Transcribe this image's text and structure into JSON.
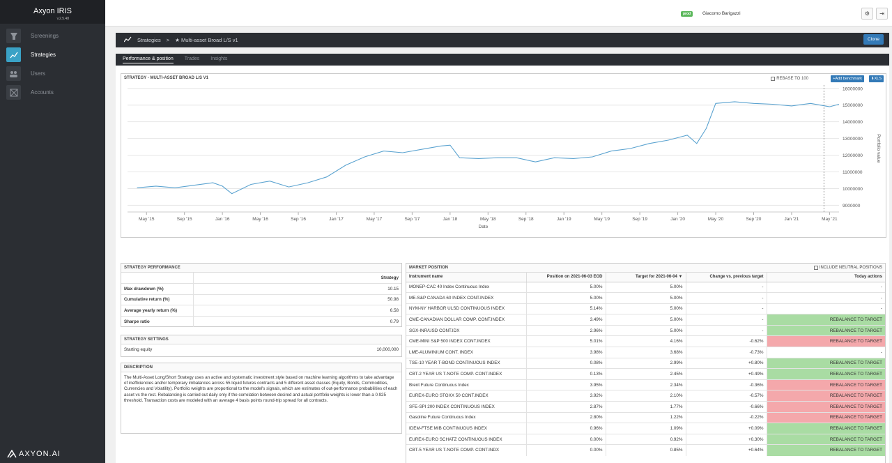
{
  "app": {
    "name": "Axyon IRIS",
    "version": "v.2.5.48",
    "footer_logo": "AXYON.AI"
  },
  "sidebar": {
    "items": [
      {
        "label": "Screenings",
        "icon": "screenings-icon",
        "active": false
      },
      {
        "label": "Strategies",
        "icon": "chart-line-icon",
        "active": true
      },
      {
        "label": "Users",
        "icon": "users-icon",
        "active": false
      },
      {
        "label": "Accounts",
        "icon": "accounts-icon",
        "active": false
      }
    ]
  },
  "topbar": {
    "env_badge": "prod",
    "user": "Giacomo Barigazzi"
  },
  "breadcrumb": {
    "section": "Strategies",
    "separator": ">",
    "current": "★ Multi-asset Broad L/S v1",
    "clone": "Clone"
  },
  "tabs": [
    {
      "label": "Performance & position",
      "active": true
    },
    {
      "label": "Trades",
      "active": false
    },
    {
      "label": "Insights",
      "active": false
    }
  ],
  "chart": {
    "panel_title": "STRATEGY - MULTI-ASSET BROAD L/S V1",
    "rebase_label": "REBASE TO 100",
    "add_benchmark": "+Add benchmark",
    "xls": "⬇XLS"
  },
  "chart_data": {
    "type": "line",
    "xlabel": "Date",
    "ylabel": "Portfolio value",
    "x_ticks": [
      "May '15",
      "Sep '15",
      "Jan '16",
      "May '16",
      "Sep '16",
      "Jan '17",
      "May '17",
      "Sep '17",
      "Jan '18",
      "May '18",
      "Sep '18",
      "Jan '19",
      "May '19",
      "Sep '19",
      "Jan '20",
      "May '20",
      "Sep '20",
      "Jan '21",
      "May '21"
    ],
    "y_ticks": [
      9000000,
      10000000,
      11000000,
      12000000,
      13000000,
      14000000,
      15000000,
      16000000
    ],
    "ylim": [
      8600000,
      16200000
    ],
    "grid": true,
    "series": [
      {
        "color": "#5ba3d0",
        "x": [
          "2015-04",
          "2015-06",
          "2015-08",
          "2015-10",
          "2015-12",
          "2016-01",
          "2016-02",
          "2016-04",
          "2016-06",
          "2016-08",
          "2016-10",
          "2016-12",
          "2017-02",
          "2017-04",
          "2017-06",
          "2017-08",
          "2017-10",
          "2017-12",
          "2018-01",
          "2018-02",
          "2018-04",
          "2018-06",
          "2018-08",
          "2018-10",
          "2018-12",
          "2019-02",
          "2019-04",
          "2019-06",
          "2019-08",
          "2019-10",
          "2019-12",
          "2020-02",
          "2020-03",
          "2020-04",
          "2020-05",
          "2020-07",
          "2020-09",
          "2020-11",
          "2021-01",
          "2021-03",
          "2021-05",
          "2021-06"
        ],
        "y": [
          10050000,
          10150000,
          10050000,
          10200000,
          10350000,
          10150000,
          9700000,
          10250000,
          10450000,
          10100000,
          10350000,
          10700000,
          11400000,
          11900000,
          12250000,
          12150000,
          12350000,
          12550000,
          12600000,
          11850000,
          11800000,
          11850000,
          11850000,
          11600000,
          11850000,
          11800000,
          11900000,
          12250000,
          12400000,
          12700000,
          12900000,
          13200000,
          12700000,
          13600000,
          15100000,
          15200000,
          15100000,
          15050000,
          14950000,
          15100000,
          14900000,
          15050000
        ]
      }
    ],
    "marker_line_at": "May '21"
  },
  "performance": {
    "title": "STRATEGY PERFORMANCE",
    "column": "Strategy",
    "rows": [
      {
        "k": "Max drawdown (%)",
        "v": "10.15"
      },
      {
        "k": "Cumulative return (%)",
        "v": "50.98"
      },
      {
        "k": "Average yearly return (%)",
        "v": "6.58"
      },
      {
        "k": "Sharpe ratio",
        "v": "0.79"
      }
    ]
  },
  "settings": {
    "title": "STRATEGY SETTINGS",
    "rows": [
      {
        "k": "Starting equity",
        "v": "10,000,000"
      }
    ]
  },
  "description": {
    "title": "DESCRIPTION",
    "text": "The Multi-Asset Long/Short Strategy uses an active and systematic investment style based on machine learning algorithms to take advantage of inefficiencies and/or temporary imbalances across 55 liquid futures contracts and 5 different asset classes (Equity, Bonds, Commodities, Currencies and Volatility). Portfolio weights are proportional to the model's signals, which are estimates of out-performance probabilities of each asset vs the rest. Rebalancing is carried out daily only if the correlation between desired and actual portfolio weights is lower than a 0.925 threshold. Transaction costs are modeled with an average 4 basis points round-trip spread for all contracts."
  },
  "market": {
    "title": "MARKET POSITION",
    "neutral_label": "INCLUDE NEUTRAL POSITIONS",
    "headers": [
      "Instrument name",
      "Position on 2021-06-03 EOD",
      "Target for 2021-06-04",
      "Change vs. previous target",
      "Today actions"
    ],
    "rows": [
      {
        "name": "MONEP-CAC 40 Index Continuous Index",
        "pos": "5.00%",
        "target": "5.00%",
        "change": "-",
        "action": "-",
        "status": "none"
      },
      {
        "name": "ME-S&P CANADA 60 INDEX CONT.INDEX",
        "pos": "5.00%",
        "target": "5.00%",
        "change": "-",
        "action": "-",
        "status": "none"
      },
      {
        "name": "NYM-NY HARBOR ULSD CONTINUOUS INDEX",
        "pos": "5.14%",
        "target": "5.00%",
        "change": "-",
        "action": "-",
        "status": "none"
      },
      {
        "name": "CME-CANADIAN DOLLAR COMP. CONT.INDEX",
        "pos": "3.49%",
        "target": "5.00%",
        "change": "-",
        "action": "REBALANCE TO TARGET",
        "status": "green"
      },
      {
        "name": "SGX-INR/USD CONT.IDX",
        "pos": "2.96%",
        "target": "5.00%",
        "change": "-",
        "action": "REBALANCE TO TARGET",
        "status": "green"
      },
      {
        "name": "CME-MINI S&P 500 INDEX CONT.INDEX",
        "pos": "5.01%",
        "target": "4.16%",
        "change": "-0.62%",
        "action": "REBALANCE TO TARGET",
        "status": "red"
      },
      {
        "name": "LME-ALUMINIUM CONT. INDEX",
        "pos": "3.98%",
        "target": "3.68%",
        "change": "-0.73%",
        "action": "-",
        "status": "none"
      },
      {
        "name": "TSE-10 YEAR T-BOND CONTINUOUS INDEX",
        "pos": "0.08%",
        "target": "2.99%",
        "change": "+0.80%",
        "action": "REBALANCE TO TARGET",
        "status": "green"
      },
      {
        "name": "CBT-2 YEAR US T-NOTE COMP. CONT.INDEX",
        "pos": "0.13%",
        "target": "2.45%",
        "change": "+0.49%",
        "action": "REBALANCE TO TARGET",
        "status": "green"
      },
      {
        "name": "Brent Future Continuous Index",
        "pos": "3.95%",
        "target": "2.34%",
        "change": "-0.36%",
        "action": "REBALANCE TO TARGET",
        "status": "red"
      },
      {
        "name": "EUREX-EURO STOXX 50 CONT.INDEX",
        "pos": "3.92%",
        "target": "2.10%",
        "change": "-0.57%",
        "action": "REBALANCE TO TARGET",
        "status": "red"
      },
      {
        "name": "SFE-SPI 200 INDEX CONTINUOUS INDEX",
        "pos": "2.87%",
        "target": "1.77%",
        "change": "-0.66%",
        "action": "REBALANCE TO TARGET",
        "status": "red"
      },
      {
        "name": "Gasoline Future Continuous Index",
        "pos": "2.80%",
        "target": "1.22%",
        "change": "-0.22%",
        "action": "REBALANCE TO TARGET",
        "status": "red"
      },
      {
        "name": "IDEM-FTSE MIB CONTINUOUS INDEX",
        "pos": "0.96%",
        "target": "1.09%",
        "change": "+0.09%",
        "action": "REBALANCE TO TARGET",
        "status": "green"
      },
      {
        "name": "EUREX-EURO SCHATZ CONTINUOUS INDEX",
        "pos": "0.00%",
        "target": "0.92%",
        "change": "+0.30%",
        "action": "REBALANCE TO TARGET",
        "status": "green"
      },
      {
        "name": "CBT-5 YEAR US T-NOTE COMP. CONT.INDX",
        "pos": "0.00%",
        "target": "0.85%",
        "change": "+0.64%",
        "action": "REBALANCE TO TARGET",
        "status": "green"
      }
    ]
  }
}
